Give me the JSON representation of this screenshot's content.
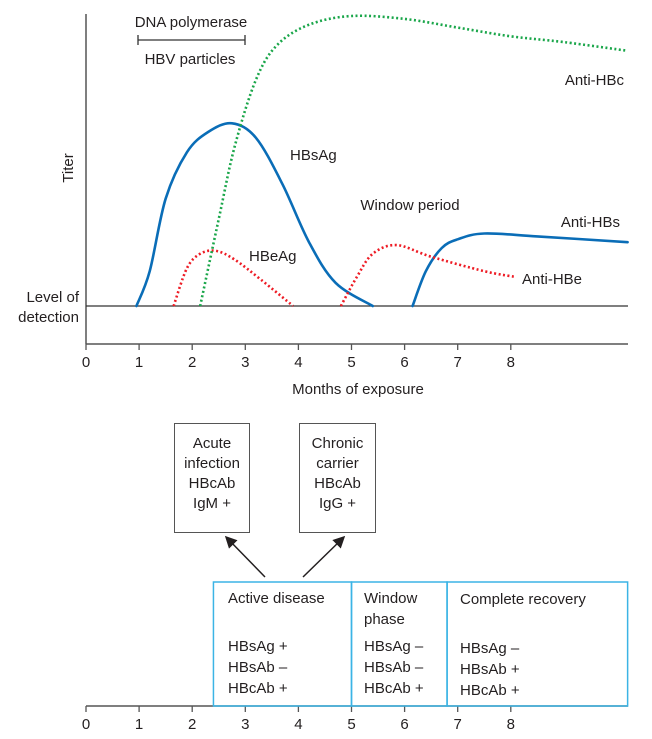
{
  "chart_data": {
    "type": "line",
    "xlabel": "Months of exposure",
    "ylabel": "Titer",
    "x_ticks": [
      "0",
      "1",
      "2",
      "3",
      "4",
      "5",
      "6",
      "7",
      "8"
    ],
    "xlim": [
      0,
      10.2
    ],
    "ylim_note_level": "Level of detection",
    "detection_label": [
      "Level of",
      "detection"
    ],
    "annotations": {
      "dna_polymerase": "DNA polymerase",
      "hbv_particles": "HBV particles",
      "window_period": "Window period",
      "bar_range_months": [
        1,
        3
      ]
    },
    "series": [
      {
        "name": "HBsAg",
        "style": "solid",
        "color": "#0a6db7",
        "points": [
          [
            0.95,
            0
          ],
          [
            1.2,
            0.12
          ],
          [
            1.5,
            0.37
          ],
          [
            1.9,
            0.53
          ],
          [
            2.3,
            0.6
          ],
          [
            2.75,
            0.63
          ],
          [
            3.2,
            0.58
          ],
          [
            3.7,
            0.42
          ],
          [
            4.2,
            0.22
          ],
          [
            4.7,
            0.08
          ],
          [
            5.4,
            0
          ]
        ]
      },
      {
        "name": "Anti-HBs",
        "style": "solid",
        "color": "#0a6db7",
        "points": [
          [
            6.15,
            0
          ],
          [
            6.4,
            0.12
          ],
          [
            6.7,
            0.2
          ],
          [
            7.0,
            0.23
          ],
          [
            7.5,
            0.25
          ],
          [
            8.5,
            0.24
          ],
          [
            10.2,
            0.22
          ]
        ]
      },
      {
        "name": "HBeAg",
        "style": "dotted",
        "color": "#ee1c25",
        "points": [
          [
            1.65,
            0
          ],
          [
            1.9,
            0.13
          ],
          [
            2.15,
            0.18
          ],
          [
            2.45,
            0.19
          ],
          [
            2.8,
            0.16
          ],
          [
            3.3,
            0.09
          ],
          [
            3.9,
            0
          ]
        ]
      },
      {
        "name": "Anti-HBe",
        "style": "dotted",
        "color": "#ee1c25",
        "points": [
          [
            4.8,
            0
          ],
          [
            5.1,
            0.1
          ],
          [
            5.4,
            0.18
          ],
          [
            5.85,
            0.21
          ],
          [
            6.5,
            0.17
          ],
          [
            7.5,
            0.12
          ],
          [
            8.1,
            0.1
          ]
        ]
      },
      {
        "name": "Anti-HBc",
        "style": "dotted",
        "color": "#1aa64a",
        "points": [
          [
            2.15,
            0
          ],
          [
            2.5,
            0.3
          ],
          [
            2.8,
            0.55
          ],
          [
            3.2,
            0.78
          ],
          [
            3.6,
            0.9
          ],
          [
            4.2,
            0.97
          ],
          [
            5.0,
            1.0
          ],
          [
            6,
            0.99
          ],
          [
            7,
            0.96
          ],
          [
            8,
            0.93
          ],
          [
            9,
            0.91
          ],
          [
            10.2,
            0.88
          ]
        ]
      }
    ]
  },
  "outcomes": {
    "acute": [
      "Acute",
      "infection",
      "HBcAb",
      "IgM +"
    ],
    "chronic": [
      "Chronic",
      "carrier",
      "HBcAb",
      "IgG +"
    ]
  },
  "phases": [
    {
      "title": [
        "Active disease"
      ],
      "markers": [
        "HBsAg +",
        "HBsAb –",
        "HBcAb +"
      ],
      "range": [
        2.4,
        5
      ]
    },
    {
      "title": [
        "Window",
        "phase"
      ],
      "markers": [
        "HBsAg –",
        "HBsAb –",
        "HBcAb +"
      ],
      "range": [
        5,
        6.8
      ]
    },
    {
      "title": [
        "Complete recovery"
      ],
      "markers": [
        "HBsAg –",
        "HBsAb +",
        "HBcAb +"
      ],
      "range": [
        6.8,
        10.2
      ]
    }
  ],
  "bottom_axis_ticks": [
    "0",
    "1",
    "2",
    "3",
    "4",
    "5",
    "6",
    "7",
    "8"
  ],
  "colors": {
    "phase_border": "#3bb4e5",
    "axis": "#555555"
  }
}
